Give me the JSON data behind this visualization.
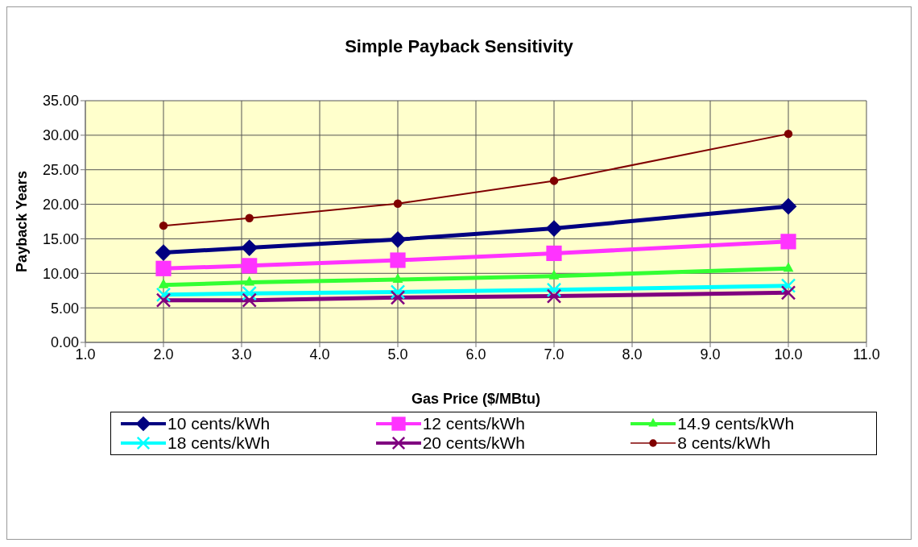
{
  "chart_data": {
    "type": "line",
    "title": "Simple Payback Sensitivity",
    "xlabel": "Gas Price ($/MBtu)",
    "ylabel": "Payback Years",
    "x": [
      2.0,
      3.1,
      5.0,
      7.0,
      10.0
    ],
    "series": [
      {
        "name": "10 cents/kWh",
        "color": "#000080",
        "marker": "diamond",
        "values": [
          13.0,
          13.7,
          14.9,
          16.5,
          19.7
        ]
      },
      {
        "name": "12 cents/kWh",
        "color": "#ff33ff",
        "marker": "square",
        "values": [
          10.7,
          11.1,
          11.9,
          12.9,
          14.6
        ]
      },
      {
        "name": "14.9 cents/kWh",
        "color": "#33ff33",
        "marker": "triangle",
        "values": [
          8.3,
          8.7,
          9.1,
          9.6,
          10.7
        ]
      },
      {
        "name": "18 cents/kWh",
        "color": "#00ffff",
        "marker": "cross",
        "values": [
          6.9,
          7.1,
          7.3,
          7.6,
          8.2
        ]
      },
      {
        "name": "20 cents/kWh",
        "color": "#800080",
        "marker": "cross",
        "values": [
          6.1,
          6.1,
          6.5,
          6.7,
          7.2
        ]
      },
      {
        "name": "8 cents/kWh",
        "color": "#800000",
        "marker": "circle",
        "values": [
          16.9,
          18.0,
          20.1,
          23.4,
          30.2
        ]
      }
    ],
    "xlim": [
      1,
      11
    ],
    "xticks": [
      {
        "value": 1,
        "label": "1.0"
      },
      {
        "value": 2,
        "label": "2.0"
      },
      {
        "value": 3,
        "label": "3.0"
      },
      {
        "value": 4,
        "label": "4.0"
      },
      {
        "value": 5,
        "label": "5.0"
      },
      {
        "value": 6,
        "label": "6.0"
      },
      {
        "value": 7,
        "label": "7.0"
      },
      {
        "value": 8,
        "label": "8.0"
      },
      {
        "value": 9,
        "label": "9.0"
      },
      {
        "value": 10,
        "label": "10.0"
      },
      {
        "value": 11,
        "label": "11.0"
      }
    ],
    "ylim": [
      0,
      35
    ],
    "yticks": [
      {
        "value": 0,
        "label": "0.00"
      },
      {
        "value": 5,
        "label": "5.00"
      },
      {
        "value": 10,
        "label": "10.00"
      },
      {
        "value": 15,
        "label": "15.00"
      },
      {
        "value": 20,
        "label": "20.00"
      },
      {
        "value": 25,
        "label": "25.00"
      },
      {
        "value": 30,
        "label": "30.00"
      },
      {
        "value": 35,
        "label": "35.00"
      }
    ],
    "grid": true,
    "legend": "bottom",
    "line_style": "solid"
  }
}
